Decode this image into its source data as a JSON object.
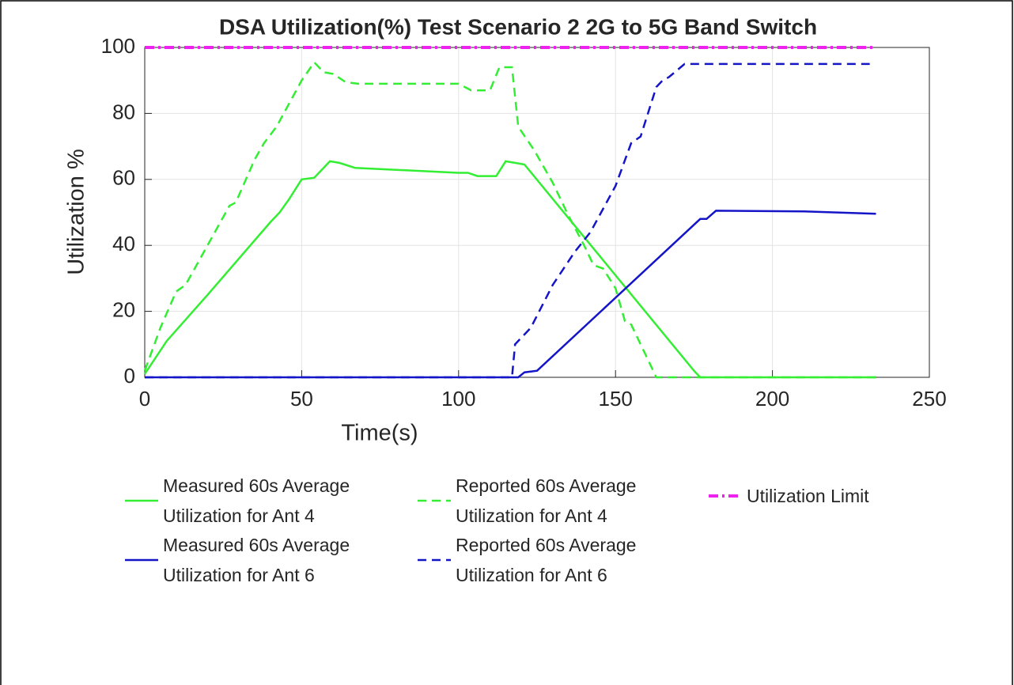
{
  "chart_data": {
    "type": "line",
    "title": "DSA Utilization(%) Test Scenario 2 2G to 5G Band Switch",
    "xlabel": "Time(s)",
    "ylabel": "Utilization %",
    "xlim": [
      0,
      250
    ],
    "xticks": [
      0,
      50,
      100,
      150,
      200,
      250
    ],
    "ylim": [
      0,
      100
    ],
    "yticks": [
      0,
      20,
      40,
      60,
      80,
      100
    ],
    "grid": true,
    "legend": "bottom",
    "series": [
      {
        "name": "Measured 60s Average Utilization for Ant 4",
        "color": "#33ee33",
        "dash": "solid",
        "x": [
          0,
          7,
          20,
          40,
          43,
          46,
          50,
          54,
          59,
          62,
          67,
          100,
          103,
          106,
          112,
          115,
          118,
          121,
          175,
          177,
          233
        ],
        "values": [
          1,
          11,
          25,
          47,
          50,
          54,
          60,
          60.5,
          65.5,
          65,
          63.5,
          62,
          62,
          61,
          61,
          65.5,
          65,
          64.5,
          2,
          0,
          0
        ]
      },
      {
        "name": "Reported 60s Average Utilization for Ant 4",
        "color": "#33ee33",
        "dash": "dashed",
        "x": [
          0,
          5,
          10,
          13,
          20,
          27,
          29,
          35,
          38,
          42,
          50,
          54,
          57,
          60,
          64,
          68,
          100,
          104,
          110,
          113,
          117,
          119,
          124,
          130,
          135,
          140,
          143,
          146,
          150,
          153,
          155,
          159,
          163,
          233
        ],
        "values": [
          2,
          15,
          26,
          28,
          40,
          52,
          53,
          66,
          71,
          76,
          90,
          95.5,
          92.5,
          92,
          89.5,
          89,
          89,
          87,
          87,
          94,
          94,
          76,
          69,
          59,
          49,
          40,
          34,
          33,
          27,
          17,
          16,
          8,
          0,
          0
        ]
      },
      {
        "name": "Utilization Limit",
        "color": "#ee22ee",
        "dash": "dashdot",
        "x": [
          0,
          233
        ],
        "values": [
          100,
          100
        ]
      },
      {
        "name": "Measured 60s Average Utilization for Ant 6",
        "color": "#1515c8",
        "dash": "solid",
        "x": [
          0,
          119,
          121,
          125,
          177,
          179,
          182,
          210,
          233
        ],
        "values": [
          0,
          0,
          1.5,
          2,
          48,
          48,
          50.5,
          50.3,
          49.6
        ]
      },
      {
        "name": "Reported 60s Average Utilization for Ant 6",
        "color": "#1515c8",
        "dash": "dashed",
        "x": [
          0,
          117,
          118,
          123,
          130,
          137,
          142,
          150,
          155,
          158,
          163,
          165,
          167,
          172,
          231
        ],
        "values": [
          0,
          0,
          10,
          15,
          28,
          38,
          44,
          58,
          71,
          73,
          88,
          90,
          91,
          95,
          95
        ]
      }
    ]
  }
}
